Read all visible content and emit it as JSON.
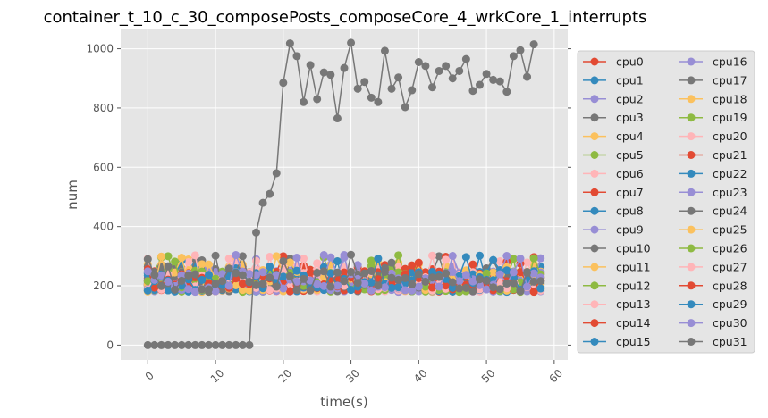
{
  "chart_data": {
    "type": "line",
    "title": "container_t_10_c_30_composePosts_composeCore_4_wrkCore_1_interrupts",
    "xlabel": "time(s)",
    "ylabel": "num",
    "xlim": [
      -4,
      62
    ],
    "ylim": [
      -50,
      1065
    ],
    "xticks": [
      0,
      10,
      20,
      30,
      40,
      50,
      60
    ],
    "yticks": [
      0,
      200,
      400,
      600,
      800,
      1000
    ],
    "grid": true,
    "legend_placement": "right-outside, two columns",
    "colors": [
      "#E24A33",
      "#348ABD",
      "#988ED5",
      "#777777",
      "#FBC15E",
      "#8EBA42",
      "#FFB5B8"
    ],
    "x": [
      0,
      1,
      2,
      3,
      4,
      5,
      6,
      7,
      8,
      9,
      10,
      11,
      12,
      13,
      14,
      15,
      16,
      17,
      18,
      19,
      20,
      21,
      22,
      23,
      24,
      25,
      26,
      27,
      28,
      29,
      30,
      31,
      32,
      33,
      34,
      35,
      36,
      37,
      38,
      39,
      40,
      41,
      42,
      43,
      44,
      45,
      46,
      47,
      48,
      49,
      50,
      51,
      52,
      53,
      54,
      55,
      56,
      57,
      58
    ],
    "noise_series_range": [
      145,
      340
    ],
    "series": [
      {
        "name": "cpu0"
      },
      {
        "name": "cpu1"
      },
      {
        "name": "cpu2"
      },
      {
        "name": "cpu3"
      },
      {
        "name": "cpu4"
      },
      {
        "name": "cpu5"
      },
      {
        "name": "cpu6"
      },
      {
        "name": "cpu7"
      },
      {
        "name": "cpu8"
      },
      {
        "name": "cpu9"
      },
      {
        "name": "cpu10"
      },
      {
        "name": "cpu11"
      },
      {
        "name": "cpu12"
      },
      {
        "name": "cpu13"
      },
      {
        "name": "cpu14"
      },
      {
        "name": "cpu15"
      },
      {
        "name": "cpu16"
      },
      {
        "name": "cpu17",
        "values": [
          0,
          0,
          0,
          0,
          0,
          0,
          0,
          0,
          0,
          0,
          0,
          0,
          0,
          0,
          0,
          0,
          380,
          480,
          510,
          580,
          885,
          1018,
          975,
          820,
          945,
          830,
          920,
          912,
          765,
          935,
          1020,
          865,
          888,
          835,
          820,
          993,
          865,
          903,
          803,
          860,
          955,
          942,
          870,
          925,
          942,
          900,
          925,
          965,
          858,
          878,
          915,
          895,
          890,
          855,
          975,
          995,
          905,
          1015,
          null
        ]
      },
      {
        "name": "cpu18"
      },
      {
        "name": "cpu19"
      },
      {
        "name": "cpu20"
      },
      {
        "name": "cpu21"
      },
      {
        "name": "cpu22"
      },
      {
        "name": "cpu23"
      },
      {
        "name": "cpu24"
      },
      {
        "name": "cpu25"
      },
      {
        "name": "cpu26"
      },
      {
        "name": "cpu27"
      },
      {
        "name": "cpu28"
      },
      {
        "name": "cpu29"
      },
      {
        "name": "cpu30"
      },
      {
        "name": "cpu31"
      }
    ]
  }
}
